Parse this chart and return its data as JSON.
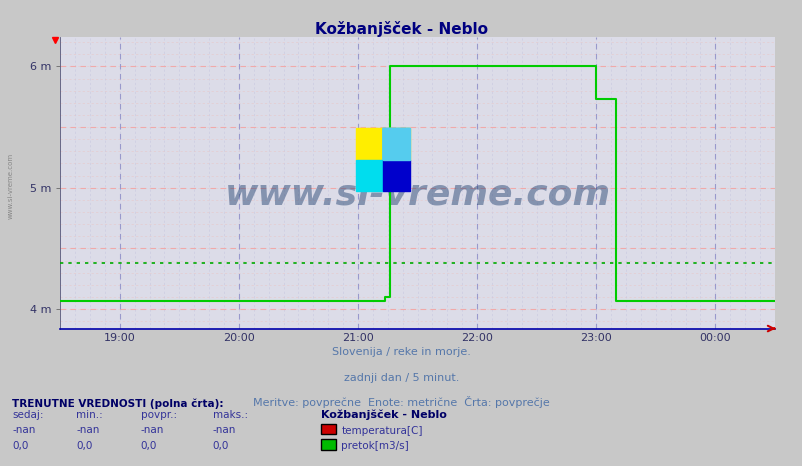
{
  "title": "Kožbanjšček - Neblo",
  "title_color": "#000080",
  "bg_color": "#c8c8c8",
  "plot_bg_color": "#dcdce8",
  "ylim": [
    3.84,
    6.24
  ],
  "y_data_min": 4.0,
  "y_data_max": 6.0,
  "xlim": [
    0,
    288
  ],
  "yticks": [
    4,
    5,
    6
  ],
  "ytick_labels": [
    "4 m",
    "5 m",
    "6 m"
  ],
  "xtick_positions": [
    24,
    72,
    120,
    168,
    216,
    264
  ],
  "xtick_labels": [
    "19:00",
    "20:00",
    "21:00",
    "22:00",
    "23:00",
    "00:00"
  ],
  "watermark": "www.si-vreme.com",
  "watermark_color": "#1a3a6b",
  "subtitle1": "Slovenija / reke in morje.",
  "subtitle2": "zadnji dan / 5 minut.",
  "subtitle3": "Meritve: povprečne  Enote: metrične  Črta: povprečje",
  "subtitle_color": "#5577aa",
  "footer_title": "TRENUTNE VREDNOSTI (polna črta):",
  "col_headers": [
    "sedaj:",
    "min.:",
    "povpr.:",
    "maks.:"
  ],
  "row1_vals": [
    "-nan",
    "-nan",
    "-nan",
    "-nan"
  ],
  "row2_vals": [
    "0,0",
    "0,0",
    "0,0",
    "0,0"
  ],
  "legend_label1": "temperatura[C]",
  "legend_color1": "#cc0000",
  "legend_label2": "pretok[m3/s]",
  "legend_color2": "#00bb00",
  "legend_station": "Kožbanjšček - Neblo",
  "avg_line_y": 4.38,
  "avg_line_color": "#00aa00",
  "green_solid_color": "#00cc00",
  "grid_pink_color": "#f0aaaa",
  "grid_blue_color": "#aaaacc",
  "left_label_color": "#888888",
  "spine_bottom_color": "#0000aa",
  "arrow_color": "#cc0000"
}
